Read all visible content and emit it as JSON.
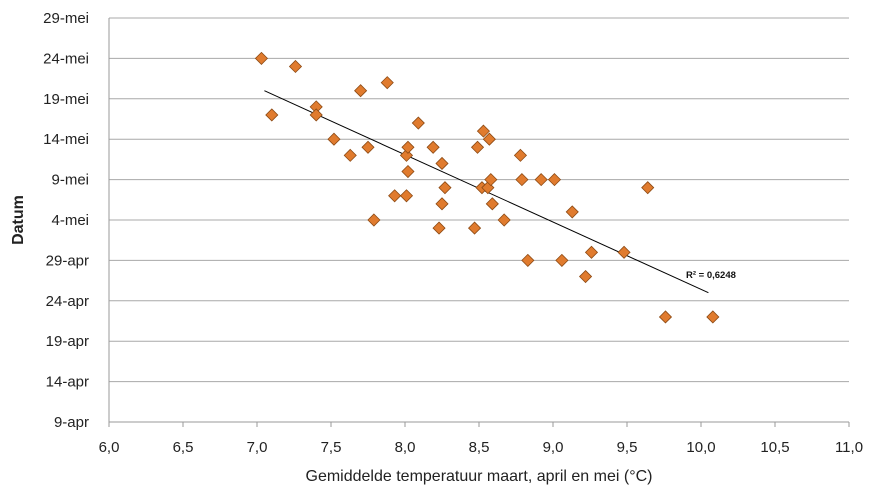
{
  "chart_data": {
    "type": "scatter",
    "xlabel": "Gemiddelde temperatuur maart, april en mei (°C)",
    "ylabel": "Datum",
    "xlim": [
      6.0,
      11.0
    ],
    "x_ticks": [
      "6,0",
      "6,5",
      "7,0",
      "7,5",
      "8,0",
      "8,5",
      "9,0",
      "9,5",
      "10,0",
      "10,5",
      "11,0"
    ],
    "y_ticks": [
      "9-apr",
      "14-apr",
      "19-apr",
      "24-apr",
      "29-apr",
      "4-mei",
      "9-mei",
      "14-mei",
      "19-mei",
      "24-mei",
      "29-mei"
    ],
    "ylim": [
      "9-apr",
      "29-mei"
    ],
    "grid": "horizontal",
    "marker_color": "#E07B2E",
    "marker_edge_color": "#8C4A14",
    "trendline_color": "#000000",
    "r_squared_label": "R² = 0,6248",
    "trendline": {
      "x": [
        7.05,
        10.05
      ],
      "y": [
        "20-mei",
        "25-apr"
      ]
    },
    "points": [
      {
        "x": 7.03,
        "y": "24-mei"
      },
      {
        "x": 7.26,
        "y": "23-mei"
      },
      {
        "x": 7.1,
        "y": "17-mei"
      },
      {
        "x": 7.4,
        "y": "18-mei"
      },
      {
        "x": 7.4,
        "y": "17-mei"
      },
      {
        "x": 7.52,
        "y": "14-mei"
      },
      {
        "x": 7.63,
        "y": "12-mei"
      },
      {
        "x": 7.7,
        "y": "20-mei"
      },
      {
        "x": 7.75,
        "y": "13-mei"
      },
      {
        "x": 7.79,
        "y": "4-mei"
      },
      {
        "x": 7.88,
        "y": "21-mei"
      },
      {
        "x": 7.93,
        "y": "7-mei"
      },
      {
        "x": 8.01,
        "y": "7-mei"
      },
      {
        "x": 8.01,
        "y": "12-mei"
      },
      {
        "x": 8.02,
        "y": "13-mei"
      },
      {
        "x": 8.02,
        "y": "10-mei"
      },
      {
        "x": 8.09,
        "y": "16-mei"
      },
      {
        "x": 8.19,
        "y": "13-mei"
      },
      {
        "x": 8.23,
        "y": "3-mei"
      },
      {
        "x": 8.25,
        "y": "11-mei"
      },
      {
        "x": 8.25,
        "y": "6-mei"
      },
      {
        "x": 8.27,
        "y": "8-mei"
      },
      {
        "x": 8.47,
        "y": "3-mei"
      },
      {
        "x": 8.49,
        "y": "13-mei"
      },
      {
        "x": 8.52,
        "y": "8-mei"
      },
      {
        "x": 8.53,
        "y": "15-mei"
      },
      {
        "x": 8.56,
        "y": "8-mei"
      },
      {
        "x": 8.57,
        "y": "14-mei"
      },
      {
        "x": 8.58,
        "y": "9-mei"
      },
      {
        "x": 8.59,
        "y": "6-mei"
      },
      {
        "x": 8.67,
        "y": "4-mei"
      },
      {
        "x": 8.78,
        "y": "12-mei"
      },
      {
        "x": 8.79,
        "y": "9-mei"
      },
      {
        "x": 8.83,
        "y": "29-apr"
      },
      {
        "x": 8.92,
        "y": "9-mei"
      },
      {
        "x": 9.01,
        "y": "9-mei"
      },
      {
        "x": 9.06,
        "y": "29-apr"
      },
      {
        "x": 9.13,
        "y": "5-mei"
      },
      {
        "x": 9.22,
        "y": "27-apr"
      },
      {
        "x": 9.26,
        "y": "30-apr"
      },
      {
        "x": 9.48,
        "y": "30-apr"
      },
      {
        "x": 9.64,
        "y": "8-mei"
      },
      {
        "x": 9.76,
        "y": "22-apr"
      },
      {
        "x": 10.08,
        "y": "22-apr"
      }
    ]
  }
}
